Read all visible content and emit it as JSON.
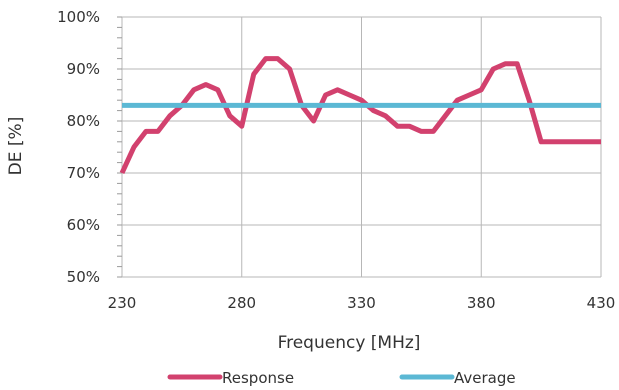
{
  "chart_data": {
    "type": "line",
    "xlabel": "Frequency [MHz]",
    "ylabel": "DE [%]",
    "xlim": [
      230,
      430
    ],
    "ylim": [
      50,
      100
    ],
    "x_ticks": [
      230,
      280,
      330,
      380,
      430
    ],
    "y_ticks": [
      "50%",
      "60%",
      "70%",
      "80%",
      "90%",
      "100%"
    ],
    "y_tick_values": [
      50,
      60,
      70,
      80,
      90,
      100
    ],
    "grid": true,
    "legend_position": "bottom",
    "series": [
      {
        "name": "Response",
        "color": "#d2416e",
        "x": [
          230,
          235,
          240,
          245,
          250,
          255,
          260,
          265,
          270,
          275,
          280,
          285,
          290,
          295,
          300,
          305,
          310,
          315,
          320,
          325,
          330,
          335,
          340,
          345,
          350,
          355,
          360,
          365,
          370,
          375,
          380,
          385,
          390,
          395,
          400,
          405,
          410,
          415,
          420,
          425,
          430
        ],
        "y": [
          70,
          75,
          78,
          78,
          81,
          83,
          86,
          87,
          86,
          81,
          79,
          89,
          92,
          92,
          90,
          83,
          80,
          85,
          86,
          85,
          84,
          82,
          81,
          79,
          79,
          78,
          78,
          81,
          84,
          85,
          86,
          90,
          91,
          91,
          84,
          76,
          76,
          76,
          76,
          76,
          76
        ]
      },
      {
        "name": "Average",
        "color": "#5bb8d4",
        "x": [
          230,
          430
        ],
        "y": [
          83,
          83
        ]
      }
    ]
  }
}
